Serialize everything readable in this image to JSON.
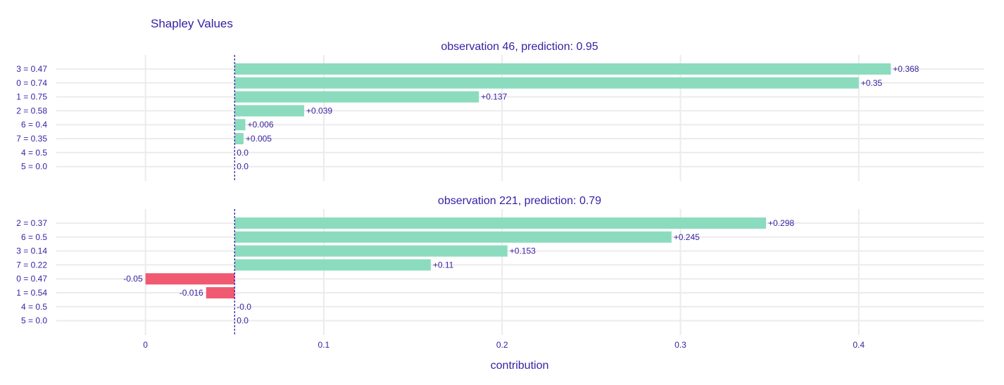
{
  "chart_data": {
    "type": "bar",
    "orientation": "horizontal",
    "title": "Shapley Values",
    "xlabel": "contribution",
    "xlim": [
      -0.05,
      0.47
    ],
    "xticks": [
      0,
      0.1,
      0.2,
      0.3,
      0.4
    ],
    "xtick_labels": [
      "0",
      "0.1",
      "0.2",
      "0.3",
      "0.4"
    ],
    "baseline": 0.05,
    "grid": true,
    "colors": {
      "positive": "#8bdcbe",
      "negative": "#f05a71",
      "text": "#371ea3",
      "baseline": "#371ea3",
      "grid": "#ebebeb"
    },
    "panels": [
      {
        "subtitle": "observation 46, prediction: 0.95",
        "categories": [
          "3 = 0.47",
          "0 = 0.74",
          "1 = 0.75",
          "2 = 0.58",
          "6 = 0.4",
          "7 = 0.35",
          "4 = 0.5",
          "5 = 0.0"
        ],
        "values": [
          0.368,
          0.35,
          0.137,
          0.039,
          0.006,
          0.005,
          0.0,
          0.0
        ],
        "labels": [
          "+0.368",
          "+0.35",
          "+0.137",
          "+0.039",
          "+0.006",
          "+0.005",
          "0.0",
          "0.0"
        ]
      },
      {
        "subtitle": "observation 221, prediction: 0.79",
        "categories": [
          "2 = 0.37",
          "6 = 0.5",
          "3 = 0.14",
          "7 = 0.22",
          "0 = 0.47",
          "1 = 0.54",
          "4 = 0.5",
          "5 = 0.0"
        ],
        "values": [
          0.298,
          0.245,
          0.153,
          0.11,
          -0.05,
          -0.016,
          0.0,
          0.0
        ],
        "labels": [
          "+0.298",
          "+0.245",
          "+0.153",
          "+0.11",
          "-0.05",
          "-0.016",
          "-0.0",
          "0.0"
        ]
      }
    ]
  }
}
